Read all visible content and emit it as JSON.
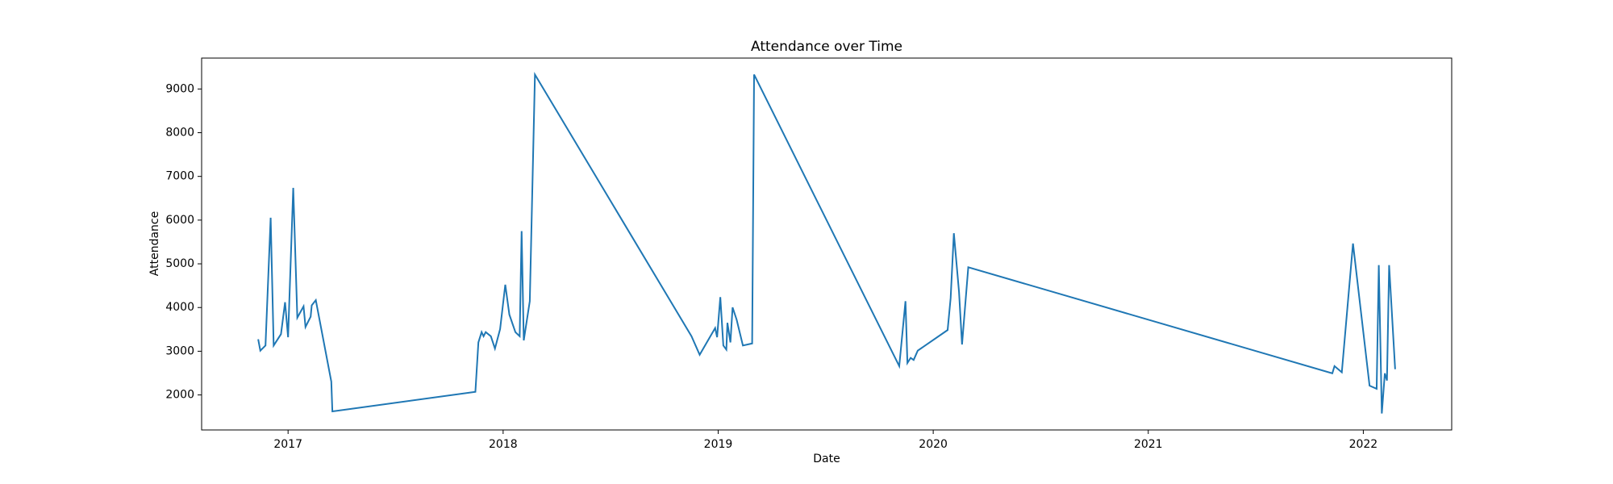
{
  "chart_data": {
    "type": "line",
    "title": "Attendance over Time",
    "x_label": "Date",
    "y_label": "Attendance",
    "x": [
      2016.861,
      2016.871,
      2016.895,
      2016.919,
      2016.933,
      2016.967,
      2016.986,
      2017.0,
      2017.024,
      2017.043,
      2017.072,
      2017.081,
      2017.105,
      2017.11,
      2017.129,
      2017.201,
      2017.206,
      2017.871,
      2017.885,
      2017.9,
      2017.909,
      2017.919,
      2017.943,
      2017.962,
      2017.986,
      2018.01,
      2018.029,
      2018.057,
      2018.077,
      2018.086,
      2018.096,
      2018.124,
      2018.148,
      2018.876,
      2018.914,
      2018.986,
      2018.995,
      2019.01,
      2019.024,
      2019.038,
      2019.043,
      2019.057,
      2019.067,
      2019.086,
      2019.115,
      2019.158,
      2019.167,
      2019.842,
      2019.871,
      2019.88,
      2019.895,
      2019.909,
      2019.928,
      2020.067,
      2020.081,
      2020.096,
      2020.12,
      2020.134,
      2020.163,
      2021.856,
      2021.866,
      2021.9,
      2021.952,
      2022.029,
      2022.062,
      2022.072,
      2022.086,
      2022.1,
      2022.11,
      2022.12,
      2022.148
    ],
    "series": [
      {
        "name": "Attendance",
        "color": "#1f77b4",
        "values": [
          3273,
          3013,
          3131,
          6054,
          3131,
          3391,
          4121,
          3320,
          6737,
          3768,
          4027,
          3556,
          3791,
          4050,
          4168,
          2306,
          1623,
          2071,
          3202,
          3438,
          3343,
          3438,
          3343,
          3061,
          3508,
          4522,
          3838,
          3438,
          3343,
          5747,
          3249,
          4145,
          9330,
          3343,
          2919,
          3532,
          3320,
          4239,
          3131,
          3037,
          3650,
          3202,
          4003,
          3721,
          3131,
          3178,
          9330,
          2660,
          4145,
          2731,
          2848,
          2801,
          3013,
          3485,
          4215,
          5700,
          4357,
          3155,
          4922,
          2495,
          2660,
          2518,
          5465,
          2212,
          2141,
          4970,
          1576,
          2495,
          2330,
          4970,
          2589
        ]
      }
    ],
    "xlim": [
      2016.598,
      2022.411
    ],
    "xticks": [
      2017,
      2018,
      2019,
      2020,
      2021,
      2022
    ],
    "ylim": [
      1199,
      9707
    ],
    "yticks": [
      2000,
      3000,
      4000,
      5000,
      6000,
      7000,
      8000,
      9000
    ]
  }
}
